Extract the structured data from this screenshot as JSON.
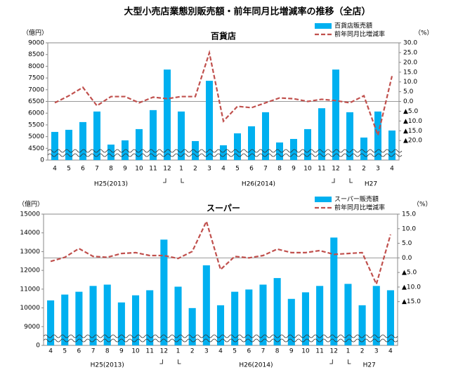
{
  "title": "大型小売店業態別販売額・前年同月比増減率の推移（全店）",
  "chart_data": [
    {
      "type": "combo",
      "title": "百貨店",
      "y_label": "（億円）",
      "y2_label": "（%）",
      "categories": [
        "4",
        "5",
        "6",
        "7",
        "8",
        "9",
        "10",
        "11",
        "12",
        "1",
        "2",
        "3",
        "4",
        "5",
        "6",
        "7",
        "8",
        "9",
        "10",
        "11",
        "12",
        "1",
        "2",
        "3",
        "4"
      ],
      "year_labels": [
        "H25(2013)",
        "H26(2014)",
        "H27"
      ],
      "series": [
        {
          "name": "百貨店販売額",
          "type": "bar",
          "color": "#00b0f0",
          "values": [
            5200,
            5290,
            5620,
            6070,
            4660,
            4840,
            5320,
            6130,
            7860,
            6070,
            4810,
            7380,
            4630,
            5140,
            5440,
            6040,
            4750,
            4900,
            5320,
            6210,
            7860,
            6040,
            4960,
            6070,
            5260
          ]
        },
        {
          "name": "前年同月比増減率",
          "type": "line",
          "axis": "y2",
          "color": "#c0504d",
          "values": [
            -0.7,
            2.9,
            7.2,
            -2.2,
            2.5,
            2.5,
            -0.7,
            2.2,
            1.4,
            2.5,
            2.5,
            24.9,
            -10.1,
            -2.5,
            -3.2,
            -0.7,
            1.8,
            1.4,
            0,
            1.1,
            0.4,
            -0.7,
            2.9,
            -17.3,
            13.0
          ]
        }
      ],
      "ylim": [
        0,
        9000
      ],
      "y_break": [
        0,
        4000
      ],
      "yticks": [
        0,
        4500,
        5000,
        5500,
        6000,
        6500,
        7000,
        7500,
        8000,
        8500,
        9000
      ],
      "y2lim": [
        -30,
        30
      ],
      "y2ticks": [
        {
          "value": -20,
          "label": "▲20.0"
        },
        {
          "value": -15,
          "label": "▲15.0"
        },
        {
          "value": -10,
          "label": "▲10.0"
        },
        {
          "value": -5,
          "label": "▲5.0"
        },
        {
          "value": 0,
          "label": "0.0"
        },
        {
          "value": 5,
          "label": "5.0"
        },
        {
          "value": 10,
          "label": "10.0"
        },
        {
          "value": 15,
          "label": "15.0"
        },
        {
          "value": 20,
          "label": "20.0"
        },
        {
          "value": 25,
          "label": "25.0"
        },
        {
          "value": 30,
          "label": "30.0"
        }
      ],
      "y2_zero_line": true,
      "legend": "upper right"
    },
    {
      "type": "combo",
      "title": "スーパー",
      "y_label": "（億円）",
      "y2_label": "（%）",
      "categories": [
        "4",
        "5",
        "6",
        "7",
        "8",
        "9",
        "10",
        "11",
        "12",
        "1",
        "2",
        "3",
        "4",
        "5",
        "6",
        "7",
        "8",
        "9",
        "10",
        "11",
        "12",
        "1",
        "2",
        "3",
        "4"
      ],
      "year_labels": [
        "H25(2013)",
        "H26(2014)",
        "H27"
      ],
      "series": [
        {
          "name": "スーパー販売額",
          "type": "bar",
          "color": "#00b0f0",
          "values": [
            10400,
            10710,
            10860,
            11170,
            11240,
            10290,
            10670,
            10940,
            13640,
            11130,
            9990,
            12270,
            10140,
            10860,
            10980,
            11240,
            11590,
            10480,
            10830,
            11170,
            13750,
            11280,
            10140,
            11170,
            10940
          ]
        },
        {
          "name": "前年同月比増減率",
          "type": "line",
          "axis": "y2",
          "color": "#c0504d",
          "values": [
            -1.2,
            0.2,
            3.2,
            0.5,
            0.2,
            1.5,
            1.8,
            0.8,
            0.8,
            -0.2,
            2.2,
            12.5,
            -4.0,
            0.5,
            0,
            0.8,
            3.0,
            1.8,
            1.8,
            2.5,
            1.2,
            1.5,
            1.8,
            -9.0,
            8.0
          ]
        }
      ],
      "ylim": [
        0,
        15000
      ],
      "y_break": [
        0,
        8000
      ],
      "yticks": [
        0,
        9000,
        10000,
        11000,
        12000,
        13000,
        14000,
        15000
      ],
      "y2lim": [
        -30,
        15
      ],
      "y2ticks": [
        {
          "value": -15,
          "label": "▲15.0"
        },
        {
          "value": -10,
          "label": "▲10.0"
        },
        {
          "value": -5,
          "label": "▲5.0"
        },
        {
          "value": 0,
          "label": "0.0"
        },
        {
          "value": 5,
          "label": "5.0"
        },
        {
          "value": 10,
          "label": "10.0"
        },
        {
          "value": 15,
          "label": "15.0"
        }
      ],
      "y2_zero_line": true,
      "legend": "upper right"
    }
  ]
}
